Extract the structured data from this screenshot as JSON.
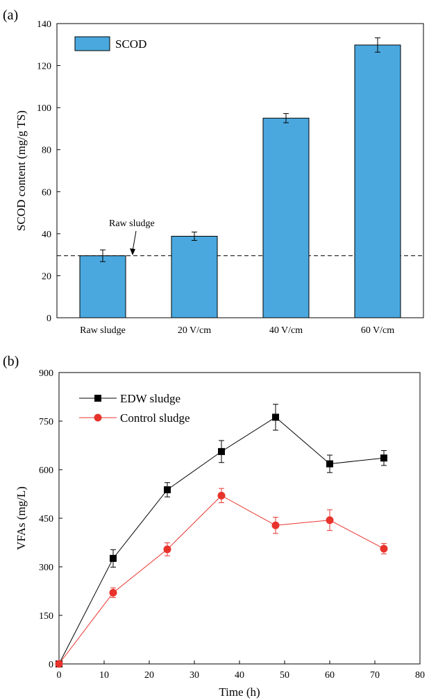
{
  "chart_data": [
    {
      "type": "bar",
      "panel_label": "(a)",
      "title": "",
      "xlabel": "",
      "ylabel": "SCOD content (mg/g TS)",
      "ylim": [
        0,
        140
      ],
      "yticks": [
        0,
        20,
        40,
        60,
        80,
        100,
        120,
        140
      ],
      "categories": [
        "Raw sludge",
        "20 V/cm",
        "40 V/cm",
        "60 V/cm"
      ],
      "series": [
        {
          "name": "SCOD",
          "values": [
            29.5,
            38.8,
            95.0,
            129.8
          ],
          "errors": [
            2.8,
            2.0,
            2.2,
            3.4
          ],
          "color": "#4aa8de"
        }
      ],
      "reference_line": {
        "value": 29.5,
        "label": "Raw sludge",
        "style": "dashed"
      },
      "legend": "top-left",
      "grid": false
    },
    {
      "type": "line",
      "panel_label": "(b)",
      "title": "",
      "xlabel": "Time (h)",
      "ylabel": "VFAs (mg/L)",
      "xlim": [
        0,
        80
      ],
      "ylim": [
        0,
        900
      ],
      "xticks": [
        0,
        10,
        20,
        30,
        40,
        50,
        60,
        70,
        80
      ],
      "yticks": [
        0,
        150,
        300,
        450,
        600,
        750,
        900
      ],
      "x": [
        0,
        12,
        24,
        36,
        48,
        60,
        72
      ],
      "series": [
        {
          "name": "EDW sludge",
          "values": [
            0,
            326,
            538,
            656,
            762,
            618,
            636
          ],
          "errors": [
            0,
            27,
            22,
            34,
            40,
            27,
            23
          ],
          "color": "#000000",
          "marker": "square"
        },
        {
          "name": "Control sludge",
          "values": [
            0,
            220,
            354,
            520,
            428,
            444,
            356
          ],
          "errors": [
            0,
            15,
            20,
            22,
            25,
            32,
            16
          ],
          "color": "#e8332c",
          "marker": "circle"
        }
      ],
      "legend": "top-left",
      "grid": false
    }
  ]
}
